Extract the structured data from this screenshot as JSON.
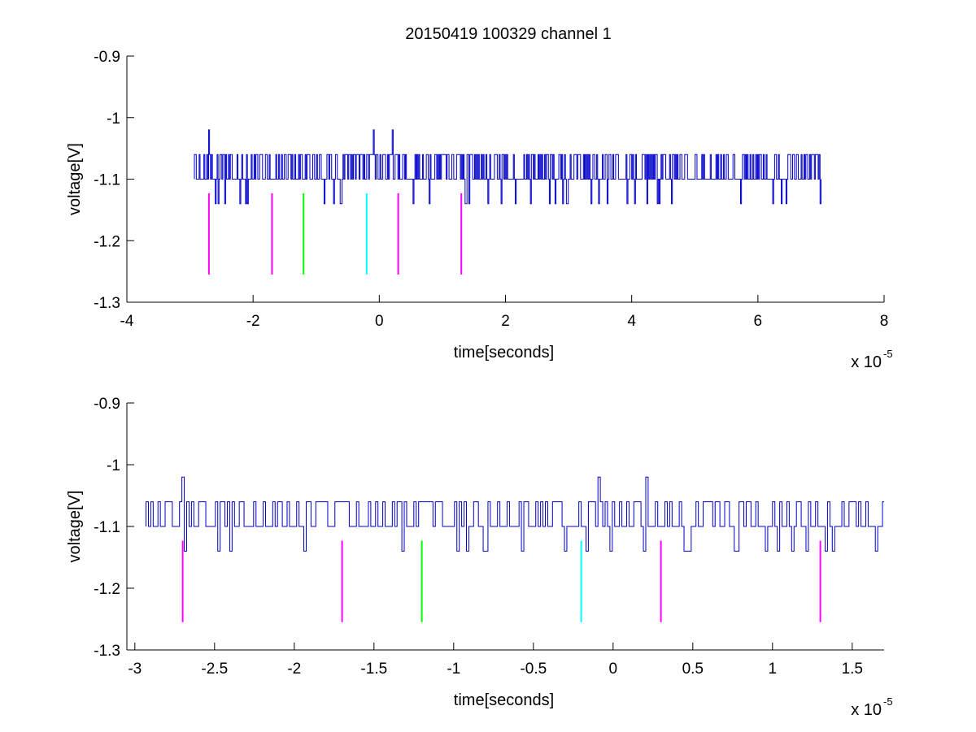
{
  "title": "20150419 100329 channel 1",
  "chart_data": [
    {
      "type": "line",
      "title": "20150419 100329 channel 1",
      "xlabel": "time[seconds]",
      "ylabel": "voltage[V]",
      "xlim": [
        -4,
        8
      ],
      "ylim": [
        -1.3,
        -0.9
      ],
      "x_ticks": [
        "-4",
        "-2",
        "0",
        "2",
        "4",
        "6",
        "8"
      ],
      "y_ticks": [
        "-0.9",
        "-1",
        "-1.1",
        "-1.2",
        "-1.3"
      ],
      "x_exponent_base": "x 10",
      "x_exponent_power": "-5",
      "grid": false,
      "series": [
        {
          "color": "#0000cc",
          "signal": {
            "x_start": -2.93,
            "x_end": 7.0,
            "baseline": -1.1,
            "levels": [
              -1.06,
              -1.1,
              -1.14
            ],
            "spikes": [
              {
                "x": -2.7,
                "y": -1.02
              },
              {
                "x": -0.1,
                "y": -1.02
              },
              {
                "x": 0.2,
                "y": -1.02
              }
            ]
          }
        }
      ],
      "markers": [
        {
          "x": -2.7,
          "y_top": -1.123,
          "y_bottom": -1.255,
          "color": "#ff00ff"
        },
        {
          "x": -1.7,
          "y_top": -1.123,
          "y_bottom": -1.255,
          "color": "#ff00ff"
        },
        {
          "x": -1.2,
          "y_top": -1.123,
          "y_bottom": -1.255,
          "color": "#00ff00"
        },
        {
          "x": -0.2,
          "y_top": -1.123,
          "y_bottom": -1.255,
          "color": "#00ffff"
        },
        {
          "x": 0.3,
          "y_top": -1.123,
          "y_bottom": -1.255,
          "color": "#ff00ff"
        },
        {
          "x": 1.3,
          "y_top": -1.123,
          "y_bottom": -1.255,
          "color": "#ff00ff"
        }
      ]
    },
    {
      "type": "line",
      "title": "",
      "xlabel": "time[seconds]",
      "ylabel": "voltage[V]",
      "xlim": [
        -3.05,
        1.7
      ],
      "ylim": [
        -1.3,
        -0.9
      ],
      "x_ticks": [
        "-3",
        "-2.5",
        "-2",
        "-1.5",
        "-1",
        "-0.5",
        "0",
        "0.5",
        "1",
        "1.5"
      ],
      "y_ticks": [
        "-0.9",
        "-1",
        "-1.1",
        "-1.2",
        "-1.3"
      ],
      "x_exponent_base": "x 10",
      "x_exponent_power": "-5",
      "grid": false,
      "series": [
        {
          "color": "#0000cc",
          "signal": {
            "x_start": -2.93,
            "x_end": 1.7,
            "baseline": -1.1,
            "levels": [
              -1.06,
              -1.1,
              -1.14
            ],
            "spikes": [
              {
                "x": -2.7,
                "y": -1.02
              },
              {
                "x": -0.1,
                "y": -1.02
              },
              {
                "x": 0.2,
                "y": -1.02
              }
            ]
          }
        }
      ],
      "markers": [
        {
          "x": -2.7,
          "y_top": -1.123,
          "y_bottom": -1.255,
          "color": "#ff00ff"
        },
        {
          "x": -1.7,
          "y_top": -1.123,
          "y_bottom": -1.255,
          "color": "#ff00ff"
        },
        {
          "x": -1.2,
          "y_top": -1.123,
          "y_bottom": -1.255,
          "color": "#00ff00"
        },
        {
          "x": -0.2,
          "y_top": -1.123,
          "y_bottom": -1.255,
          "color": "#00ffff"
        },
        {
          "x": 0.3,
          "y_top": -1.123,
          "y_bottom": -1.255,
          "color": "#ff00ff"
        },
        {
          "x": 1.3,
          "y_top": -1.123,
          "y_bottom": -1.255,
          "color": "#ff00ff"
        }
      ]
    }
  ]
}
